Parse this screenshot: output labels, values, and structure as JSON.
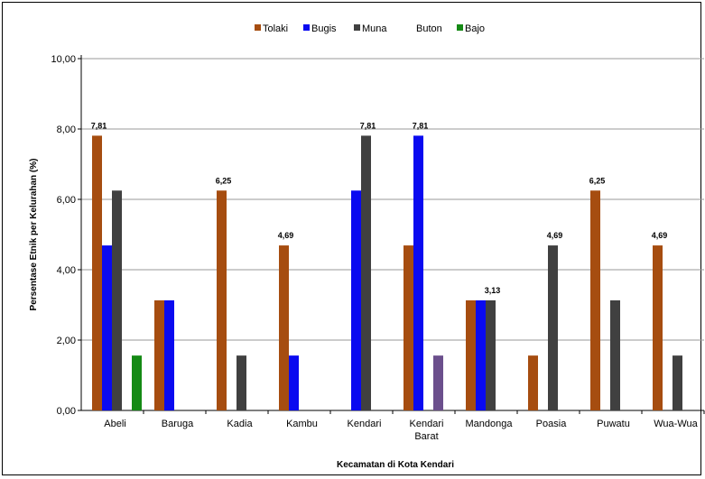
{
  "chart_data": {
    "type": "bar",
    "title": "",
    "xlabel": "Kecamatan di Kota Kendari",
    "ylabel": "Persentase Etnik per Kelurahan (%)",
    "ylim": [
      0,
      10
    ],
    "yticks": [
      "0,00",
      "2,00",
      "4,00",
      "6,00",
      "8,00",
      "10,00"
    ],
    "ytick_values": [
      0,
      2,
      4,
      6,
      8,
      10
    ],
    "grid": true,
    "legend_position": "top",
    "categories": [
      "Abeli",
      "Baruga",
      "Kadia",
      "Kambu",
      "Kendari",
      "Kendari Barat",
      "Mandonga",
      "Poasia",
      "Puwatu",
      "Wua-Wua"
    ],
    "category_lines": [
      [
        "Abeli"
      ],
      [
        "Baruga"
      ],
      [
        "Kadia"
      ],
      [
        "Kambu"
      ],
      [
        "Kendari"
      ],
      [
        "Kendari",
        "Barat"
      ],
      [
        "Mandonga"
      ],
      [
        "Poasia"
      ],
      [
        "Puwatu"
      ],
      [
        "Wua-Wua"
      ]
    ],
    "series": [
      {
        "name": "Tolaki",
        "color": "#a64d10",
        "values": [
          7.81,
          3.13,
          6.25,
          4.69,
          0,
          4.69,
          3.13,
          1.56,
          6.25,
          4.69
        ]
      },
      {
        "name": "Bugis",
        "color": "#0a0af0",
        "values": [
          4.69,
          3.13,
          0,
          1.56,
          6.25,
          7.81,
          3.13,
          0,
          0,
          0
        ]
      },
      {
        "name": "Muna",
        "color": "#404040",
        "values": [
          6.25,
          0,
          1.56,
          0,
          7.81,
          0,
          3.13,
          4.69,
          3.13,
          1.56
        ]
      },
      {
        "name": "Buton",
        "color": "#6b4f8c",
        "values": [
          0,
          0,
          0,
          0,
          0,
          1.56,
          0,
          0,
          0,
          0
        ]
      },
      {
        "name": "Bajo",
        "color": "#158a15",
        "values": [
          1.56,
          0,
          0,
          0,
          0,
          0,
          0,
          0,
          0,
          0
        ]
      }
    ],
    "data_labels": [
      {
        "category": 0,
        "series": 0,
        "text": "7,81"
      },
      {
        "category": 2,
        "series": 0,
        "text": "6,25"
      },
      {
        "category": 3,
        "series": 0,
        "text": "4,69"
      },
      {
        "category": 4,
        "series": 2,
        "text": "7,81"
      },
      {
        "category": 5,
        "series": 1,
        "text": "7,81"
      },
      {
        "category": 6,
        "series": 2,
        "text": "3,13"
      },
      {
        "category": 7,
        "series": 2,
        "text": "4,69"
      },
      {
        "category": 8,
        "series": 0,
        "text": "6,25"
      },
      {
        "category": 9,
        "series": 0,
        "text": "4,69"
      }
    ]
  }
}
